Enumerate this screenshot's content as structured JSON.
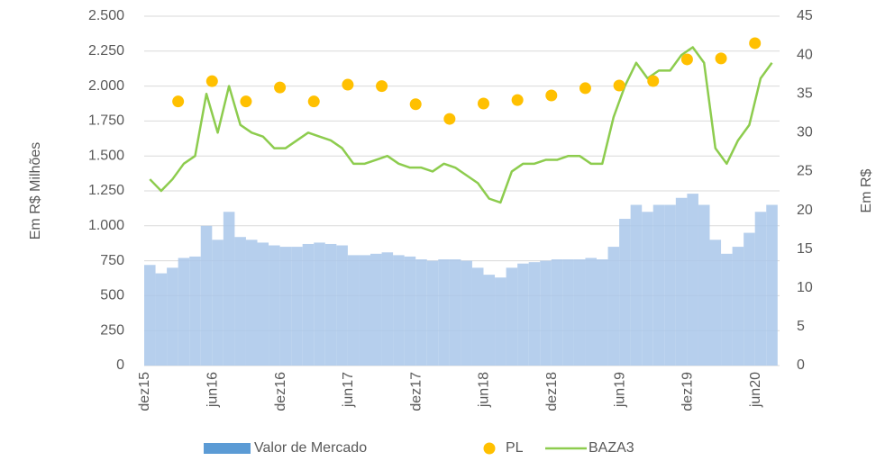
{
  "chart_data": {
    "type": "combo",
    "y_label": "Em R$ Milhões",
    "y2_label": "Em R$",
    "categories": [
      "dez15",
      null,
      null,
      null,
      null,
      null,
      "jun16",
      null,
      null,
      null,
      null,
      null,
      "dez16",
      null,
      null,
      null,
      null,
      null,
      "jun17",
      null,
      null,
      null,
      null,
      null,
      "dez17",
      null,
      null,
      null,
      null,
      null,
      "jun18",
      null,
      null,
      null,
      null,
      null,
      "dez18",
      null,
      null,
      null,
      null,
      null,
      "jun19",
      null,
      null,
      null,
      null,
      null,
      "dez19",
      null,
      null,
      null,
      null,
      null,
      "jun20",
      null
    ],
    "series": [
      {
        "name": "Valor de Mercado",
        "kind": "bar",
        "color": "#a9c7ea",
        "values": [
          720,
          660,
          700,
          770,
          780,
          1000,
          900,
          1100,
          920,
          900,
          880,
          860,
          850,
          850,
          870,
          880,
          870,
          860,
          790,
          790,
          800,
          810,
          790,
          780,
          760,
          750,
          760,
          760,
          750,
          700,
          650,
          630,
          700,
          730,
          740,
          750,
          760,
          760,
          760,
          770,
          760,
          850,
          1050,
          1150,
          1100,
          1150,
          1150,
          1200,
          1230,
          1150,
          900,
          800,
          850,
          950,
          1100,
          1150
        ]
      },
      {
        "name": "PL",
        "kind": "scatter",
        "color": "#ffc000",
        "values": [
          null,
          null,
          null,
          1890,
          null,
          null,
          2035,
          null,
          null,
          1890,
          null,
          null,
          1990,
          null,
          null,
          1890,
          null,
          null,
          2010,
          null,
          null,
          2000,
          null,
          null,
          1870,
          null,
          null,
          1765,
          null,
          null,
          1875,
          null,
          null,
          1900,
          null,
          null,
          1933,
          null,
          null,
          1985,
          null,
          null,
          2004,
          null,
          null,
          2036,
          null,
          null,
          2191,
          null,
          null,
          2198,
          null,
          null,
          2307,
          null
        ]
      },
      {
        "name": "BAZA3",
        "kind": "line",
        "axis": "y2",
        "color": "#8dcc4e",
        "values": [
          24,
          22.5,
          24,
          26,
          27,
          35,
          30,
          36,
          31,
          30,
          29.5,
          28,
          28,
          29,
          30,
          29.5,
          29,
          28,
          26,
          26,
          26.5,
          27,
          26,
          25.5,
          25.5,
          25,
          26,
          25.5,
          24.5,
          23.5,
          21.5,
          21,
          25,
          26,
          26,
          26.5,
          26.5,
          27,
          27,
          26,
          26,
          32,
          36,
          39,
          37,
          38,
          38,
          40,
          41,
          39,
          28,
          26,
          29,
          31,
          37,
          39
        ]
      }
    ],
    "ylim": [
      0,
      2500
    ],
    "yticks": [
      0,
      250,
      500,
      750,
      {
        "value": 1000,
        "label": "1.000"
      },
      {
        "value": 1250,
        "label": "1.250"
      },
      {
        "value": 1500,
        "label": "1.500"
      },
      {
        "value": 1750,
        "label": "1.750"
      },
      {
        "value": 2000,
        "label": "2.000"
      },
      {
        "value": 2250,
        "label": "2.250"
      },
      {
        "value": 2500,
        "label": "2.500"
      }
    ],
    "y2lim": [
      0,
      45
    ],
    "y2ticks": [
      0,
      5,
      10,
      15,
      20,
      25,
      30,
      35,
      40,
      45
    ],
    "grid": true,
    "legend": "bottom"
  }
}
